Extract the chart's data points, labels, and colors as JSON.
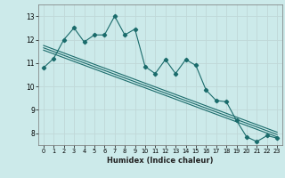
{
  "title": "",
  "xlabel": "Humidex (Indice chaleur)",
  "bg_color": "#cceaea",
  "grid_color": "#c0d8d8",
  "line_color": "#1a6b6b",
  "xlim": [
    -0.5,
    23.5
  ],
  "ylim": [
    7.5,
    13.5
  ],
  "xticks": [
    0,
    1,
    2,
    3,
    4,
    5,
    6,
    7,
    8,
    9,
    10,
    11,
    12,
    13,
    14,
    15,
    16,
    17,
    18,
    19,
    20,
    21,
    22,
    23
  ],
  "yticks": [
    8,
    9,
    10,
    11,
    12,
    13
  ],
  "series1_x": [
    0,
    1,
    2,
    3,
    4,
    5,
    6,
    7,
    8,
    9,
    10,
    11,
    12,
    13,
    14,
    15,
    16,
    17,
    18,
    19,
    20,
    21,
    22,
    23
  ],
  "series1_y": [
    10.8,
    11.2,
    12.0,
    12.5,
    11.9,
    12.2,
    12.2,
    13.0,
    12.2,
    12.45,
    10.85,
    10.55,
    11.15,
    10.55,
    11.15,
    10.9,
    9.85,
    9.4,
    9.35,
    8.55,
    7.85,
    7.65,
    7.9,
    7.8
  ],
  "line1_x": [
    0,
    23
  ],
  "line1_y": [
    11.75,
    8.05
  ],
  "line2_x": [
    0,
    23
  ],
  "line2_y": [
    11.55,
    7.85
  ],
  "line3_x": [
    0,
    23
  ],
  "line3_y": [
    11.65,
    7.95
  ]
}
